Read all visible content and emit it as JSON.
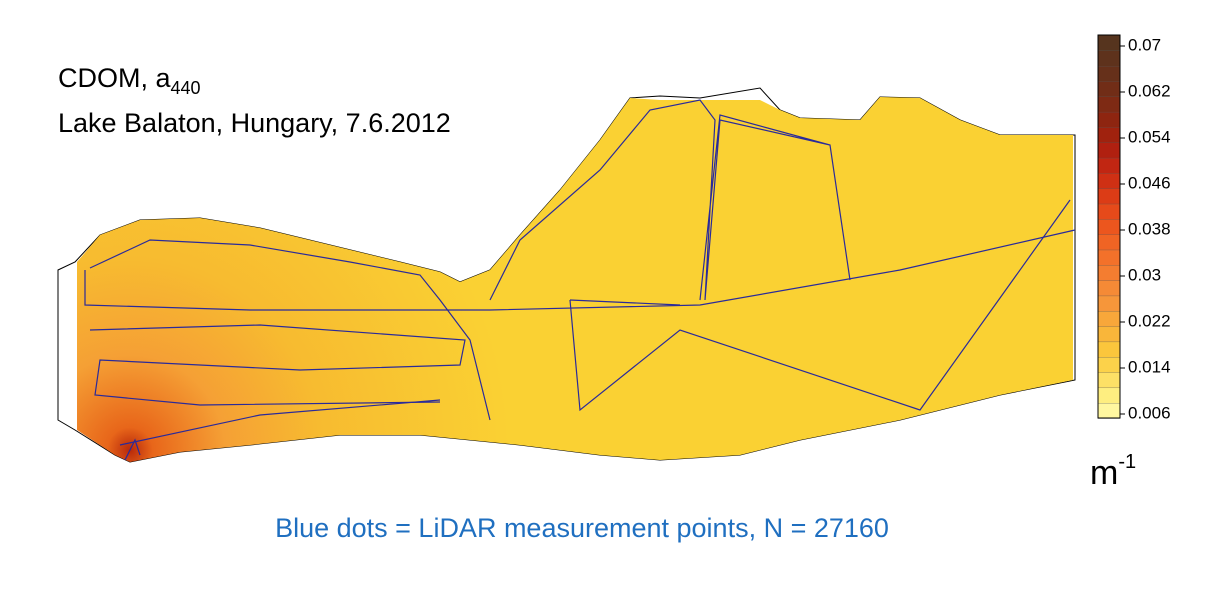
{
  "title": {
    "text": "CDOM, a",
    "subscript": "440"
  },
  "subtitle": "Lake Balaton, Hungary, 7.6.2012",
  "colorbar": {
    "ticks": [
      0.07,
      0.062,
      0.054,
      0.046,
      0.038,
      0.03,
      0.022,
      0.014,
      0.006
    ],
    "unit": {
      "text": "m",
      "superscript": "-1"
    }
  },
  "caption": "Blue dots = LiDAR measurement points, N = 27160"
}
